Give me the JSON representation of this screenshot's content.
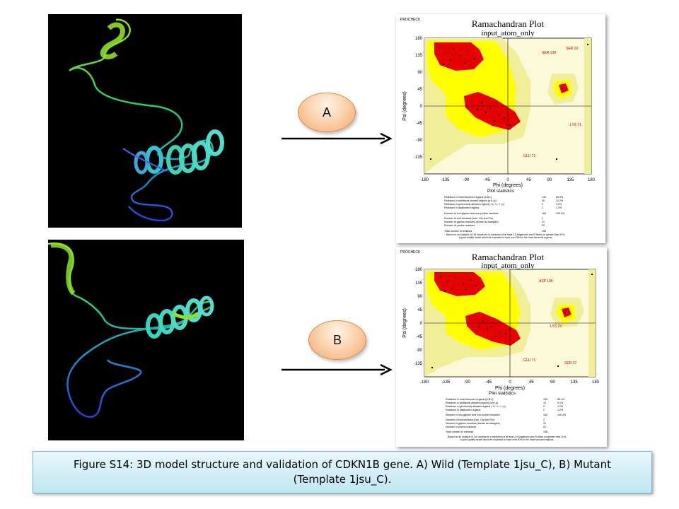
{
  "caption": "Figure S14: 3D model structure and validation of CDKN1B gene. A) Wild (Template 1jsu_C), B) Mutant (Template 1jsu_C).",
  "panels": [
    {
      "label": "A",
      "plot": {
        "header": "PROCHECK",
        "title": "Ramachandran Plot",
        "subtitle": "input_atom_only",
        "xlabel": "Phi (degrees)",
        "ylabel": "Psi (degrees)",
        "xticks": [
          "-180",
          "-135",
          "-90",
          "-45",
          "0",
          "45",
          "90",
          "135",
          "180"
        ],
        "yticks": [
          "180",
          "135",
          "90",
          "45",
          "0",
          "-45",
          "-90",
          "-135"
        ],
        "residue_labels": [
          "SER 10",
          "SER 138",
          "LYS 71",
          "GLU 71"
        ],
        "stats_title": "Plot statistics",
        "stats": [
          {
            "label": "Residues in most favoured regions [A,B,L]",
            "count": "140",
            "pct": "85.4%"
          },
          {
            "label": "Residues in additional allowed regions [a,b,l,p]",
            "count": "20",
            "pct": "12.2%"
          },
          {
            "label": "Residues in generously allowed regions [~a,~b,~l,~p]",
            "count": "2",
            "pct": "1.2%"
          },
          {
            "label": "Residues in disallowed regions",
            "count": "2",
            "pct": "1.2%"
          },
          {
            "label": "Number of non-glycine and non-proline residues",
            "count": "164",
            "pct": "100.0%"
          },
          {
            "label": "Number of end-residues (excl. Gly and Pro)",
            "count": "2",
            "pct": ""
          },
          {
            "label": "Number of glycine residues (shown as triangles)",
            "count": "12",
            "pct": ""
          },
          {
            "label": "Number of proline residues",
            "count": "20",
            "pct": ""
          },
          {
            "label": "Total number of residues",
            "count": "198",
            "pct": ""
          }
        ],
        "note": "Based on an analysis of 118 structures of resolution of at least 2.0 Angstroms and R-factor no greater than 20%, a good quality model would be expected to have over 90% in the most favoured regions."
      }
    },
    {
      "label": "B",
      "plot": {
        "header": "PROCHECK",
        "title": "Ramachandran Plot",
        "subtitle": "input_atom_only",
        "xlabel": "Phi (degrees)",
        "ylabel": "Psi (degrees)",
        "xticks": [
          "-180",
          "-135",
          "-90",
          "-45",
          "0",
          "45",
          "90",
          "135",
          "180"
        ],
        "yticks": [
          "180",
          "135",
          "90",
          "45",
          "0",
          "-45",
          "-90",
          "-135"
        ],
        "residue_labels": [
          "ASP 106",
          "LYS 73",
          "GLU 71",
          "SER 37"
        ],
        "stats_title": "Plot statistics",
        "stats": [
          {
            "label": "Residues in most favoured regions [A,B,L]",
            "count": "145",
            "pct": "88.4%"
          },
          {
            "label": "Residues in additional allowed regions [a,b,l,p]",
            "count": "15",
            "pct": "9.1%"
          },
          {
            "label": "Residues in generously allowed regions [~a,~b,~l,~p]",
            "count": "2",
            "pct": "1.2%"
          },
          {
            "label": "Residues in disallowed regions",
            "count": "2",
            "pct": "1.2%"
          },
          {
            "label": "Number of non-glycine and non-proline residues",
            "count": "164",
            "pct": "100.0%"
          },
          {
            "label": "Number of end-residues (excl. Gly and Pro)",
            "count": "2",
            "pct": ""
          },
          {
            "label": "Number of glycine residues (shown as triangles)",
            "count": "12",
            "pct": ""
          },
          {
            "label": "Number of proline residues",
            "count": "20",
            "pct": ""
          },
          {
            "label": "Total number of residues",
            "count": "198",
            "pct": ""
          }
        ],
        "note": "Based on an analysis of 118 structures of resolution of at least 2.0 Angstroms and R-factor no greater than 20%, a good quality model would be expected to have over 90% in the most favoured regions."
      }
    }
  ],
  "colors": {
    "most_favoured": "#e60000",
    "additional": "#ffff00",
    "generous": "#f2f0a8",
    "caption_bg": "#c8ecf6",
    "oval": "#f7b888"
  }
}
